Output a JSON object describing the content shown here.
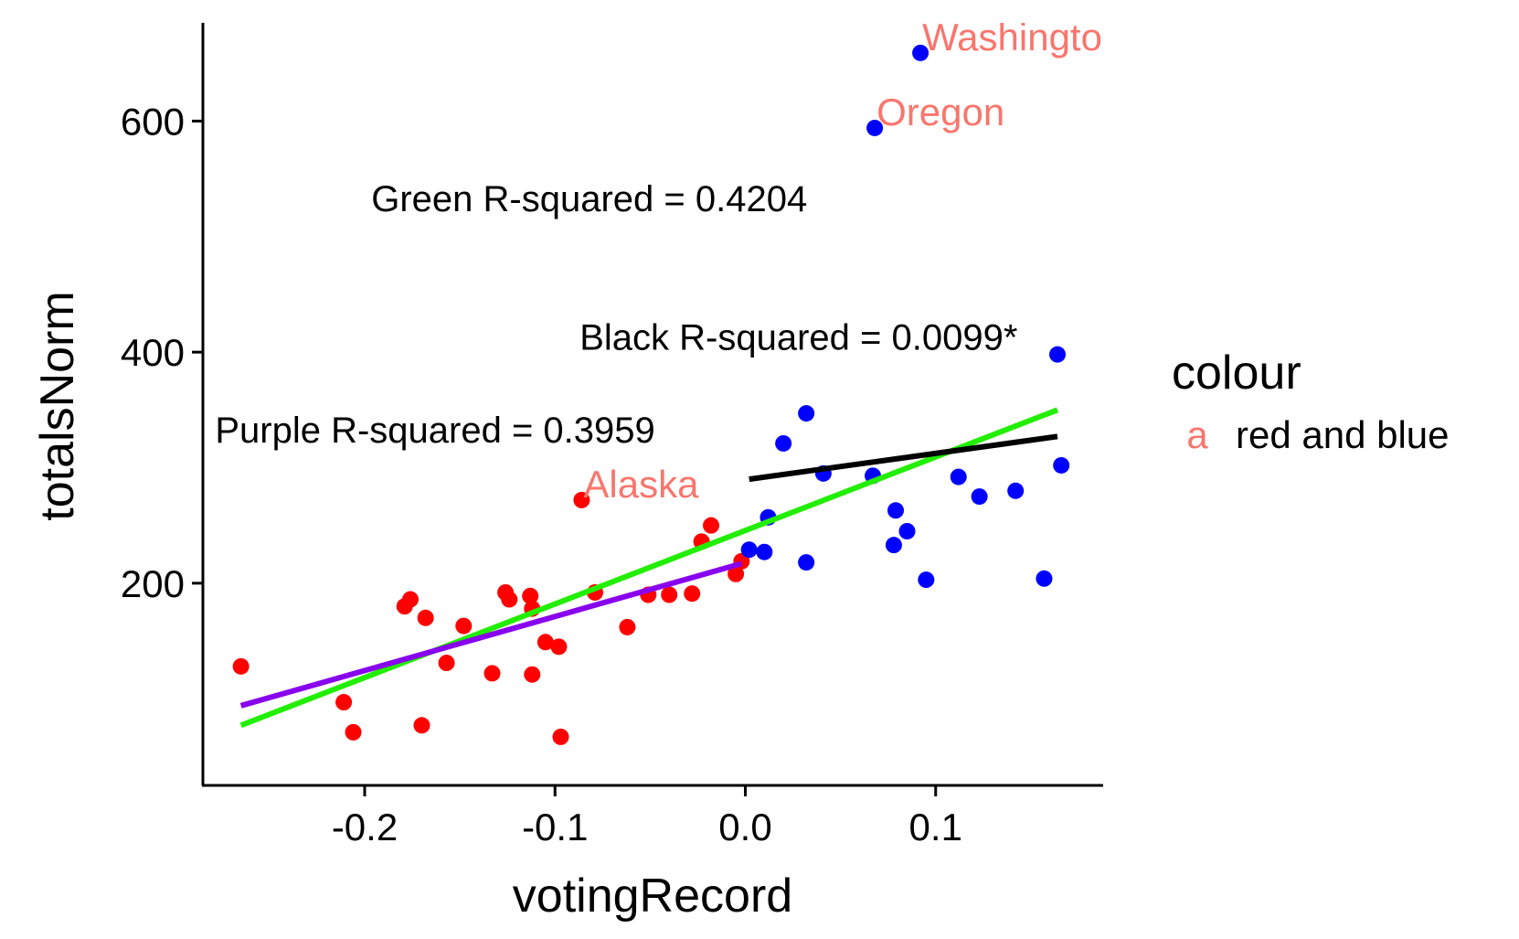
{
  "chart_data": {
    "type": "scatter",
    "xlabel": "votingRecord",
    "ylabel": "totalsNorm",
    "xlim": [
      -0.285,
      0.188
    ],
    "ylim": [
      25,
      685
    ],
    "xticks": [
      -0.2,
      -0.1,
      0.0,
      0.1
    ],
    "xtick_labels": [
      "-0.2",
      "-0.1",
      "0.0",
      "0.1"
    ],
    "yticks": [
      200,
      400,
      600
    ],
    "ytick_labels": [
      "200",
      "400",
      "600"
    ],
    "grid": false,
    "colors": {
      "red_points": "#ff0000",
      "blue_points": "#0000ff",
      "label_text": "#f8766d",
      "green_line": "#22ee00",
      "purple_line": "#8800ee",
      "black_line": "#000000"
    },
    "series": [
      {
        "color": "#ff0000",
        "points": [
          [
            -0.265,
            128
          ],
          [
            -0.211,
            97
          ],
          [
            -0.206,
            71
          ],
          [
            -0.179,
            180
          ],
          [
            -0.176,
            186
          ],
          [
            -0.17,
            77
          ],
          [
            -0.168,
            170
          ],
          [
            -0.157,
            131
          ],
          [
            -0.148,
            163
          ],
          [
            -0.133,
            122
          ],
          [
            -0.126,
            192
          ],
          [
            -0.124,
            186
          ],
          [
            -0.113,
            189
          ],
          [
            -0.112,
            178
          ],
          [
            -0.112,
            121
          ],
          [
            -0.105,
            149
          ],
          [
            -0.098,
            145
          ],
          [
            -0.097,
            67
          ],
          [
            -0.086,
            272
          ],
          [
            -0.079,
            192
          ],
          [
            -0.062,
            162
          ],
          [
            -0.051,
            190
          ],
          [
            -0.04,
            190
          ],
          [
            -0.028,
            191
          ],
          [
            -0.023,
            236
          ],
          [
            -0.018,
            250
          ],
          [
            -0.005,
            208
          ],
          [
            -0.002,
            219
          ]
        ]
      },
      {
        "color": "#0000ff",
        "points": [
          [
            0.002,
            229
          ],
          [
            0.01,
            227
          ],
          [
            0.012,
            257
          ],
          [
            0.02,
            321
          ],
          [
            0.032,
            347
          ],
          [
            0.032,
            218
          ],
          [
            0.041,
            295
          ],
          [
            0.067,
            293
          ],
          [
            0.068,
            594
          ],
          [
            0.078,
            233
          ],
          [
            0.079,
            263
          ],
          [
            0.085,
            245
          ],
          [
            0.092,
            659
          ],
          [
            0.095,
            203
          ],
          [
            0.112,
            292
          ],
          [
            0.123,
            275
          ],
          [
            0.142,
            280
          ],
          [
            0.157,
            204
          ],
          [
            0.164,
            398
          ],
          [
            0.166,
            302
          ]
        ]
      }
    ],
    "lines": [
      {
        "color": "#22ee00",
        "x": [
          -0.265,
          0.164
        ],
        "y": [
          77,
          350
        ]
      },
      {
        "color": "#8800ee",
        "x": [
          -0.265,
          -0.002
        ],
        "y": [
          94,
          217
        ]
      },
      {
        "color": "#000000",
        "x": [
          0.002,
          0.164
        ],
        "y": [
          290,
          327
        ]
      }
    ],
    "point_labels": [
      {
        "text": "Washington",
        "x": 0.092,
        "y": 659
      },
      {
        "text": "Oregon",
        "x": 0.068,
        "y": 594
      },
      {
        "text": "Alaska",
        "x": -0.086,
        "y": 272
      }
    ],
    "annotations": [
      {
        "text": "Green R-squared = 0.4204",
        "x": -0.082,
        "y": 533
      },
      {
        "text": "Black R-squared = 0.0099*",
        "x": 0.028,
        "y": 413
      },
      {
        "text": "Purple R-squared = 0.3959",
        "x": -0.163,
        "y": 333
      }
    ],
    "legend": {
      "title": "colour",
      "position": "right",
      "entries": [
        {
          "key": "a",
          "label": "red and blue"
        }
      ]
    }
  }
}
